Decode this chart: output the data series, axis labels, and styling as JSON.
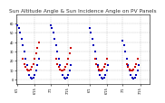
{
  "title": "Sun Altitude Angle & Sun Incidence Angle on PV Panels",
  "title_fontsize": 4.2,
  "tick_fontsize": 2.5,
  "background_color": "#ffffff",
  "grid_color": "#bbbbbb",
  "ylim": [
    -5,
    70
  ],
  "yticks": [
    0,
    10,
    20,
    30,
    40,
    50,
    60
  ],
  "xlim": [
    0,
    100
  ],
  "blue_x": [
    1,
    2,
    3,
    4,
    5,
    6,
    7,
    8,
    9,
    10,
    11,
    12,
    13,
    14,
    15,
    16,
    17,
    26,
    27,
    28,
    29,
    30,
    31,
    32,
    33,
    34,
    35,
    36,
    37,
    38,
    39,
    40,
    41,
    55,
    56,
    57,
    58,
    59,
    60,
    61,
    62,
    63,
    64,
    65,
    66,
    67,
    68,
    69,
    80,
    81,
    82,
    83,
    84,
    85,
    86,
    87,
    88,
    89,
    90,
    91,
    92
  ],
  "blue_y": [
    58,
    55,
    50,
    44,
    37,
    30,
    22,
    16,
    10,
    5,
    2,
    1,
    2,
    5,
    10,
    16,
    22,
    58,
    55,
    50,
    44,
    37,
    30,
    22,
    16,
    10,
    5,
    2,
    1,
    2,
    5,
    10,
    16,
    55,
    50,
    44,
    37,
    30,
    22,
    16,
    10,
    5,
    2,
    1,
    2,
    5,
    10,
    16,
    42,
    37,
    30,
    22,
    16,
    10,
    5,
    2,
    1,
    2,
    5,
    10,
    16
  ],
  "red_x": [
    5,
    6,
    7,
    8,
    9,
    10,
    11,
    12,
    13,
    14,
    15,
    16,
    17,
    30,
    31,
    32,
    33,
    34,
    35,
    36,
    37,
    38,
    39,
    40,
    41,
    59,
    60,
    61,
    62,
    63,
    64,
    65,
    66,
    67,
    68,
    83,
    84,
    85,
    86,
    87,
    88,
    89,
    90,
    91
  ],
  "red_y": [
    22,
    17,
    14,
    11,
    10,
    10,
    11,
    14,
    17,
    22,
    28,
    34,
    40,
    22,
    17,
    14,
    11,
    10,
    10,
    11,
    14,
    17,
    22,
    28,
    34,
    22,
    17,
    14,
    11,
    10,
    10,
    11,
    14,
    17,
    22,
    17,
    14,
    11,
    10,
    10,
    11,
    14,
    17,
    22
  ],
  "xtick_positions": [
    1,
    14,
    26,
    39,
    55,
    68,
    80,
    93
  ],
  "xtick_labels": [
    "6/1",
    "6/15",
    "7/1",
    "7/15",
    "6/1",
    "6/15",
    "7/1",
    "7/15"
  ]
}
